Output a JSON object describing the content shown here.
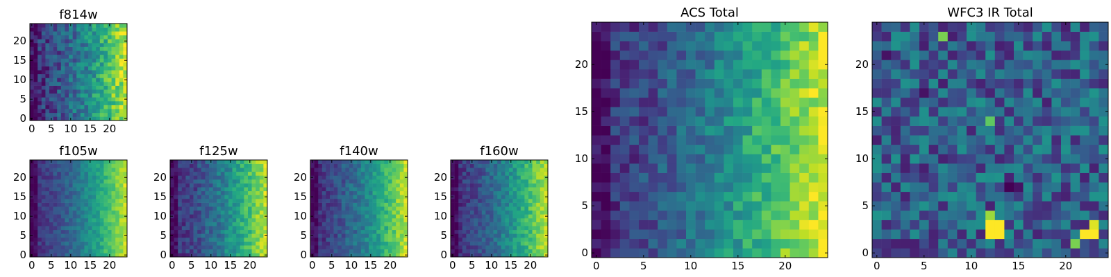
{
  "chart_data": [
    {
      "type": "heatmap",
      "title": "f814w",
      "xticks": [
        "0",
        "5",
        "10",
        "15",
        "20"
      ],
      "yticks": [
        "0",
        "5",
        "10",
        "15",
        "20"
      ],
      "xlim": [
        -0.5,
        24.5
      ],
      "ylim": [
        -0.5,
        24.5
      ],
      "grid_size": 25,
      "colormap": "viridis",
      "trend": "left-to-right",
      "seed": 11,
      "noise": 0.32
    },
    {
      "type": "heatmap",
      "title": "f105w",
      "xticks": [
        "0",
        "5",
        "10",
        "15",
        "20"
      ],
      "yticks": [
        "0",
        "5",
        "10",
        "15",
        "20"
      ],
      "xlim": [
        -0.5,
        24.5
      ],
      "ylim": [
        -0.5,
        24.5
      ],
      "grid_size": 25,
      "colormap": "viridis",
      "trend": "left-to-right",
      "seed": 23,
      "noise": 0.16
    },
    {
      "type": "heatmap",
      "title": "f125w",
      "xticks": [
        "0",
        "5",
        "10",
        "15",
        "20"
      ],
      "yticks": [
        "0",
        "5",
        "10",
        "15",
        "20"
      ],
      "xlim": [
        -0.5,
        24.5
      ],
      "ylim": [
        -0.5,
        24.5
      ],
      "grid_size": 25,
      "colormap": "viridis",
      "trend": "left-to-right",
      "seed": 37,
      "noise": 0.22
    },
    {
      "type": "heatmap",
      "title": "f140w",
      "xticks": [
        "0",
        "5",
        "10",
        "15",
        "20"
      ],
      "yticks": [
        "0",
        "5",
        "10",
        "15",
        "20"
      ],
      "xlim": [
        -0.5,
        24.5
      ],
      "ylim": [
        -0.5,
        24.5
      ],
      "grid_size": 25,
      "colormap": "viridis",
      "trend": "left-to-right",
      "seed": 51,
      "noise": 0.2
    },
    {
      "type": "heatmap",
      "title": "f160w",
      "xticks": [
        "0",
        "5",
        "10",
        "15",
        "20"
      ],
      "yticks": [
        "0",
        "5",
        "10",
        "15",
        "20"
      ],
      "xlim": [
        -0.5,
        24.5
      ],
      "ylim": [
        -0.5,
        24.5
      ],
      "grid_size": 25,
      "colormap": "viridis",
      "trend": "left-to-right",
      "seed": 67,
      "noise": 0.2
    },
    {
      "type": "heatmap",
      "title": "ACS Total",
      "xticks": [
        "0",
        "5",
        "10",
        "15",
        "20"
      ],
      "yticks": [
        "0",
        "5",
        "10",
        "15",
        "20"
      ],
      "xlim": [
        -0.5,
        24.5
      ],
      "ylim": [
        -0.5,
        24.5
      ],
      "grid_size": 25,
      "colormap": "viridis",
      "trend": "left-to-right",
      "seed": 83,
      "noise": 0.26
    },
    {
      "type": "heatmap",
      "title": "WFC3 IR Total",
      "xticks": [
        "0",
        "5",
        "10",
        "15",
        "20"
      ],
      "yticks": [
        "0",
        "5",
        "10",
        "15",
        "20"
      ],
      "xlim": [
        -0.5,
        24.5
      ],
      "ylim": [
        -0.5,
        24.5
      ],
      "grid_size": 25,
      "colormap": "viridis",
      "trend": "flat-noisy",
      "seed": 97,
      "noise": 0.24,
      "hot_pixels": [
        [
          12,
          3,
          1.0
        ],
        [
          12,
          2,
          1.0
        ],
        [
          13,
          3,
          1.0
        ],
        [
          13,
          2,
          1.0
        ],
        [
          12,
          4,
          0.85
        ],
        [
          22,
          2,
          1.0
        ],
        [
          23,
          2,
          1.0
        ],
        [
          23,
          3,
          0.95
        ],
        [
          21,
          1,
          0.8
        ],
        [
          7,
          23,
          0.8
        ],
        [
          12,
          14,
          0.75
        ]
      ],
      "cold_pixels": [
        [
          14,
          7,
          0.0
        ],
        [
          15,
          7,
          0.05
        ],
        [
          14,
          8,
          0.1
        ],
        [
          5,
          17,
          0.05
        ],
        [
          3,
          10,
          0.1
        ],
        [
          1,
          21,
          0.05
        ]
      ]
    }
  ]
}
